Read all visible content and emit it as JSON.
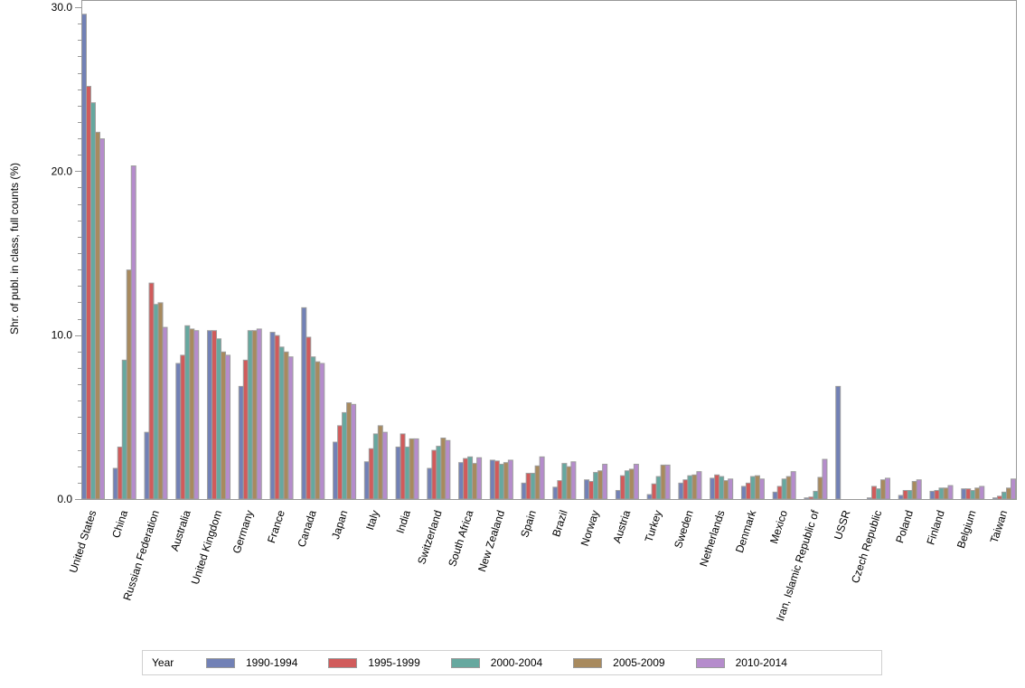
{
  "chart_data": {
    "type": "bar",
    "title": "",
    "xlabel": "",
    "ylabel": "Shr. of publ. in class, full counts (%)",
    "ylim": [
      0,
      30
    ],
    "yticks": [
      0,
      10,
      20,
      30
    ],
    "ytick_labels": [
      "0.0",
      "10.0",
      "20.0",
      "30.0"
    ],
    "y_minor_tick_step": 1,
    "grid": false,
    "legend_title": "Year",
    "legend_position": "bottom",
    "categories": [
      "United States",
      "China",
      "Russian Federation",
      "Australia",
      "United Kingdom",
      "Germany",
      "France",
      "Canada",
      "Japan",
      "Italy",
      "India",
      "Switzerland",
      "South Africa",
      "New Zealand",
      "Spain",
      "Brazil",
      "Norway",
      "Austria",
      "Turkey",
      "Sweden",
      "Netherlands",
      "Denmark",
      "Mexico",
      "Iran, Islamic Republic of",
      "USSR",
      "Czech Republic",
      "Poland",
      "Finland",
      "Belgium",
      "Taiwan"
    ],
    "series": [
      {
        "name": "1990-1994",
        "color": "#7281b6",
        "values": [
          29.6,
          1.9,
          4.1,
          8.3,
          10.3,
          6.9,
          10.2,
          11.7,
          3.5,
          2.3,
          3.2,
          1.9,
          2.25,
          2.4,
          1.0,
          0.75,
          1.2,
          0.55,
          0.3,
          1.0,
          1.3,
          0.8,
          0.45,
          0.1,
          6.9,
          0.1,
          0.25,
          0.5,
          0.65,
          0.1
        ]
      },
      {
        "name": "1995-1999",
        "color": "#d15b5b",
        "values": [
          25.2,
          3.2,
          13.2,
          8.8,
          10.3,
          8.5,
          10.0,
          9.9,
          4.5,
          3.1,
          4.0,
          3.0,
          2.5,
          2.35,
          1.6,
          1.15,
          1.1,
          1.45,
          0.95,
          1.2,
          1.5,
          1.0,
          0.8,
          0.15,
          0,
          0.8,
          0.55,
          0.55,
          0.65,
          0.2
        ]
      },
      {
        "name": "2000-2004",
        "color": "#66a89f",
        "values": [
          24.2,
          8.5,
          11.9,
          10.6,
          9.8,
          10.3,
          9.3,
          8.7,
          5.3,
          4.0,
          3.2,
          3.25,
          2.6,
          2.15,
          1.6,
          2.2,
          1.65,
          1.75,
          1.4,
          1.45,
          1.4,
          1.4,
          1.25,
          0.5,
          0,
          0.65,
          0.55,
          0.7,
          0.55,
          0.45
        ]
      },
      {
        "name": "2005-2009",
        "color": "#a88a5e",
        "values": [
          22.4,
          14.0,
          12.0,
          10.4,
          9.0,
          10.3,
          9.0,
          8.4,
          5.9,
          4.5,
          3.7,
          3.75,
          2.2,
          2.25,
          2.05,
          2.0,
          1.75,
          1.85,
          2.1,
          1.5,
          1.15,
          1.45,
          1.4,
          1.35,
          0,
          1.2,
          1.1,
          0.7,
          0.7,
          0.7
        ]
      },
      {
        "name": "2010-2014",
        "color": "#b58ccc",
        "values": [
          22.0,
          20.35,
          10.5,
          10.3,
          8.8,
          10.4,
          8.7,
          8.3,
          5.8,
          4.1,
          3.7,
          3.6,
          2.55,
          2.4,
          2.6,
          2.3,
          2.15,
          2.15,
          2.1,
          1.7,
          1.25,
          1.25,
          1.7,
          2.45,
          0,
          1.3,
          1.2,
          0.85,
          0.8,
          1.25
        ]
      }
    ]
  },
  "legend": {
    "title": "Year",
    "items": [
      {
        "label": "1990-1994",
        "color": "#7281b6"
      },
      {
        "label": "1995-1999",
        "color": "#d15b5b"
      },
      {
        "label": "2000-2004",
        "color": "#66a89f"
      },
      {
        "label": "2005-2009",
        "color": "#a88a5e"
      },
      {
        "label": "2010-2014",
        "color": "#b58ccc"
      }
    ]
  },
  "axis": {
    "y_label": "Shr. of publ. in class, full counts (%)"
  }
}
